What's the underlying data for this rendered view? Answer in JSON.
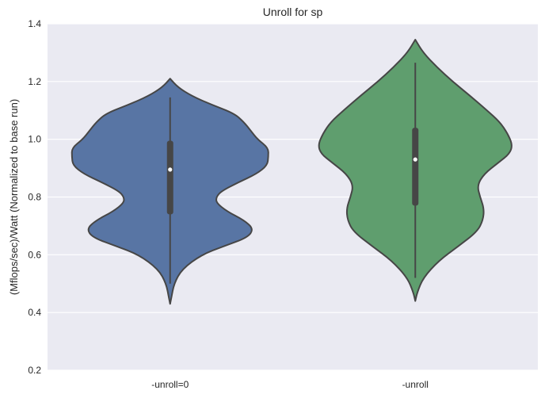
{
  "chart_data": {
    "type": "violin",
    "title": "Unroll for sp",
    "xlabel": "",
    "ylabel": "(Mflops/sec)/Watt (Normalized to base run)",
    "ylim": [
      0.2,
      1.4
    ],
    "yticks": [
      "0.2",
      "0.4",
      "0.6",
      "0.8",
      "1.0",
      "1.2",
      "1.4"
    ],
    "grid": true,
    "categories": [
      "-unroll=0",
      "-unroll"
    ],
    "colors": {
      "background": "#eaeaf2",
      "grid": "#ffffff",
      "outline": "#464646",
      "box": "#464646",
      "median": "#ffffff"
    },
    "violins": [
      {
        "category": "-unroll=0",
        "color": "#5875a4",
        "min": 0.43,
        "max": 1.21,
        "whisker_low": 0.5,
        "whisker_high": 1.145,
        "q1": 0.74,
        "q3": 0.995,
        "median": 0.895,
        "density": [
          [
            0.43,
            0.0
          ],
          [
            0.45,
            0.012
          ],
          [
            0.5,
            0.04
          ],
          [
            0.55,
            0.12
          ],
          [
            0.6,
            0.32
          ],
          [
            0.63,
            0.55
          ],
          [
            0.66,
            0.79
          ],
          [
            0.69,
            0.85
          ],
          [
            0.72,
            0.75
          ],
          [
            0.75,
            0.58
          ],
          [
            0.78,
            0.47
          ],
          [
            0.8,
            0.47
          ],
          [
            0.82,
            0.52
          ],
          [
            0.85,
            0.69
          ],
          [
            0.88,
            0.88
          ],
          [
            0.91,
            0.99
          ],
          [
            0.94,
            1.0
          ],
          [
            0.97,
            1.0
          ],
          [
            1.0,
            0.89
          ],
          [
            1.03,
            0.82
          ],
          [
            1.06,
            0.75
          ],
          [
            1.09,
            0.65
          ],
          [
            1.12,
            0.42
          ],
          [
            1.15,
            0.22
          ],
          [
            1.18,
            0.08
          ],
          [
            1.21,
            0.0
          ]
        ]
      },
      {
        "category": "-unroll",
        "color": "#5f9e6e",
        "min": 0.44,
        "max": 1.345,
        "whisker_low": 0.52,
        "whisker_high": 1.265,
        "q1": 0.77,
        "q3": 1.04,
        "median": 0.93,
        "density": [
          [
            0.44,
            0.0
          ],
          [
            0.47,
            0.02
          ],
          [
            0.52,
            0.08
          ],
          [
            0.58,
            0.24
          ],
          [
            0.63,
            0.44
          ],
          [
            0.68,
            0.63
          ],
          [
            0.72,
            0.69
          ],
          [
            0.76,
            0.7
          ],
          [
            0.8,
            0.66
          ],
          [
            0.84,
            0.63
          ],
          [
            0.88,
            0.7
          ],
          [
            0.92,
            0.85
          ],
          [
            0.95,
            0.96
          ],
          [
            0.98,
            0.99
          ],
          [
            1.02,
            0.94
          ],
          [
            1.06,
            0.86
          ],
          [
            1.1,
            0.73
          ],
          [
            1.15,
            0.56
          ],
          [
            1.2,
            0.38
          ],
          [
            1.25,
            0.22
          ],
          [
            1.3,
            0.08
          ],
          [
            1.345,
            0.0
          ]
        ]
      }
    ]
  }
}
